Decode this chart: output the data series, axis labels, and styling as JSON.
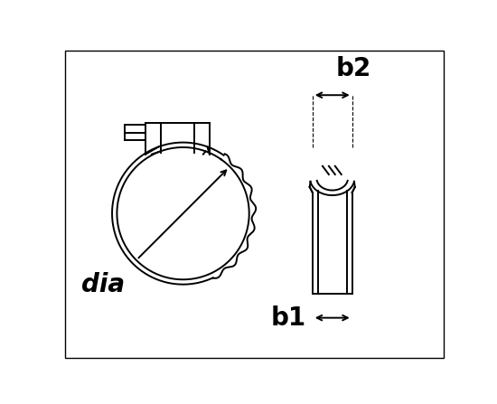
{
  "bg_color": "#ffffff",
  "line_color": "#000000",
  "fig_width": 5.5,
  "fig_height": 4.47,
  "dpi": 100,
  "label_dia": "dia",
  "label_b1": "b1",
  "label_b2": "b2",
  "label_fontsize": 20,
  "label_fontweight": "bold",
  "lw": 1.4
}
